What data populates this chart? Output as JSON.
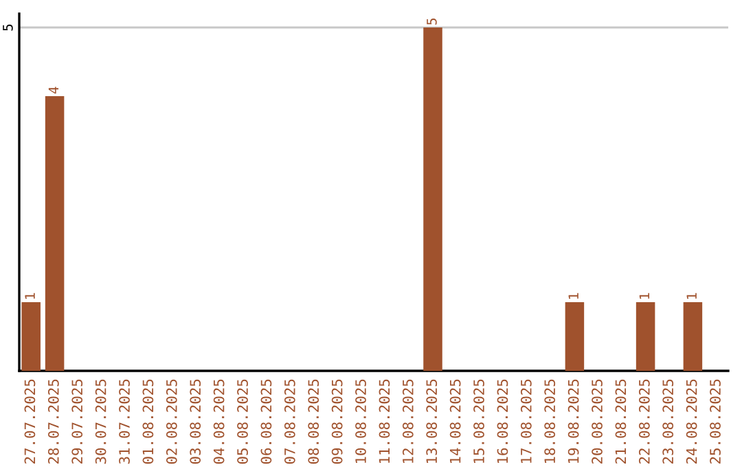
{
  "chart_data": {
    "type": "bar",
    "categories": [
      "27.07.2025",
      "28.07.2025",
      "29.07.2025",
      "30.07.2025",
      "31.07.2025",
      "01.08.2025",
      "02.08.2025",
      "03.08.2025",
      "04.08.2025",
      "05.08.2025",
      "06.08.2025",
      "07.08.2025",
      "08.08.2025",
      "09.08.2025",
      "10.08.2025",
      "11.08.2025",
      "12.08.2025",
      "13.08.2025",
      "14.08.2025",
      "15.08.2025",
      "16.08.2025",
      "17.08.2025",
      "18.08.2025",
      "19.08.2025",
      "20.08.2025",
      "21.08.2025",
      "22.08.2025",
      "23.08.2025",
      "24.08.2025",
      "25.08.2025"
    ],
    "values": [
      1,
      4,
      0,
      0,
      0,
      0,
      0,
      0,
      0,
      0,
      0,
      0,
      0,
      0,
      0,
      0,
      0,
      5,
      0,
      0,
      0,
      0,
      0,
      1,
      0,
      0,
      1,
      0,
      1,
      0
    ],
    "value_labels": [
      "1",
      "4",
      null,
      null,
      null,
      null,
      null,
      null,
      null,
      null,
      null,
      null,
      null,
      null,
      null,
      null,
      null,
      "5",
      null,
      null,
      null,
      null,
      null,
      "1",
      null,
      null,
      "1",
      null,
      "1",
      null
    ],
    "color": "#a0522d",
    "ylim": [
      0,
      5.2
    ],
    "yticks": [
      5
    ],
    "grid": "y",
    "legend": false
  }
}
